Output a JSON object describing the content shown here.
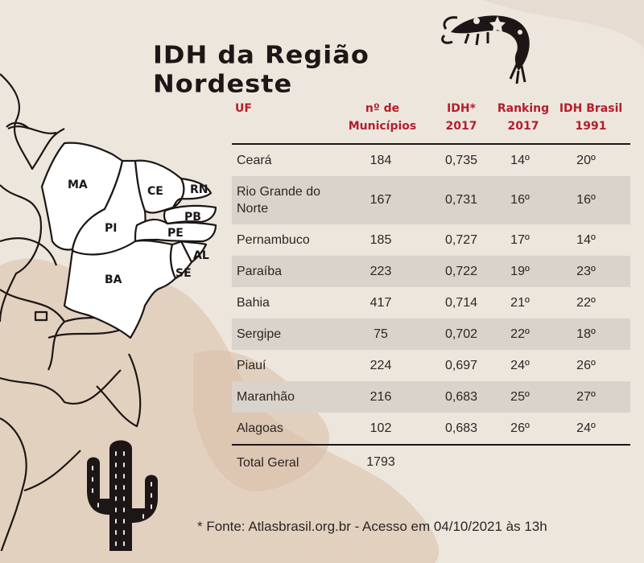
{
  "title": "IDH da Região Nordeste",
  "table": {
    "headers": {
      "uf": "UF",
      "municipios": [
        "nº de",
        "Municípios"
      ],
      "idh": [
        "IDH*",
        "2017"
      ],
      "ranking": [
        "Ranking",
        "2017"
      ],
      "idh_brasil": [
        "IDH Brasil",
        "1991"
      ]
    },
    "rows": [
      {
        "uf": "Ceará",
        "municipios": "184",
        "idh": "0,735",
        "ranking": "14º",
        "idh_brasil": "20º"
      },
      {
        "uf": "Rio Grande do Norte",
        "municipios": "167",
        "idh": "0,731",
        "ranking": "16º",
        "idh_brasil": "16º"
      },
      {
        "uf": "Pernambuco",
        "municipios": "185",
        "idh": "0,727",
        "ranking": "17º",
        "idh_brasil": "14º"
      },
      {
        "uf": "Paraíba",
        "municipios": "223",
        "idh": "0,722",
        "ranking": "19º",
        "idh_brasil": "23º"
      },
      {
        "uf": "Bahia",
        "municipios": "417",
        "idh": "0,714",
        "ranking": "21º",
        "idh_brasil": "22º"
      },
      {
        "uf": "Sergipe",
        "municipios": "75",
        "idh": "0,702",
        "ranking": "22º",
        "idh_brasil": "18º"
      },
      {
        "uf": "Piauí",
        "municipios": "224",
        "idh": "0,697",
        "ranking": "24º",
        "idh_brasil": "26º"
      },
      {
        "uf": "Maranhão",
        "municipios": "216",
        "idh": "0,683",
        "ranking": "25º",
        "idh_brasil": "27º"
      },
      {
        "uf": "Alagoas",
        "municipios": "102",
        "idh": "0,683",
        "ranking": "26º",
        "idh_brasil": "24º"
      }
    ],
    "total": {
      "label": "Total Geral",
      "municipios": "1793"
    }
  },
  "map_labels": {
    "ma": "MA",
    "pi": "PI",
    "ce": "CE",
    "rn": "RN",
    "pb": "PB",
    "pe": "PE",
    "al": "AL",
    "se": "SE",
    "ba": "BA"
  },
  "footnote": "* Fonte: Atlasbrasil.org.br - Acesso em 04/10/2021 às 13h",
  "colors": {
    "header_red": "#b21e2c",
    "ink": "#1c1716",
    "row_shade": "#d9d3cb",
    "background": "#ede6dd"
  }
}
